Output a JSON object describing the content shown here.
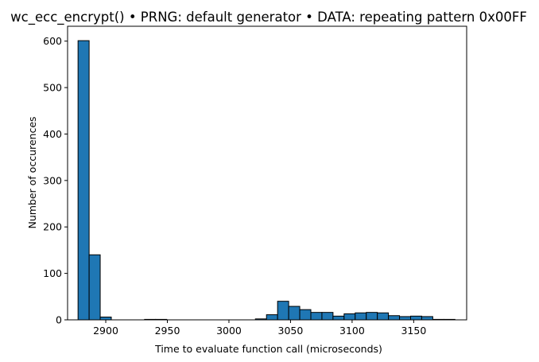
{
  "chart_data": {
    "type": "bar",
    "title": "wc_ecc_encrypt() • PRNG: default generator • DATA: repeating pattern 0x00FF",
    "xlabel": "Time to evaluate function call (microseconds)",
    "ylabel": "Number of occurences",
    "xlim": [
      2869,
      3193
    ],
    "ylim": [
      0,
      632
    ],
    "xticks": [
      2900,
      2950,
      3000,
      3050,
      3100,
      3150
    ],
    "yticks": [
      0,
      100,
      200,
      300,
      400,
      500,
      600
    ],
    "grid": false,
    "bar_color": "#1f77b4",
    "edge_color": "#000000",
    "bin_edges": [
      2877.5,
      2886.5,
      2895.5,
      2904.5,
      2913.5,
      2922.5,
      2931.5,
      2940.5,
      2949.5,
      2958.5,
      2967.5,
      2976.5,
      2985.5,
      2994.5,
      3003.5,
      3012.5,
      3021.5,
      3030.5,
      3039.5,
      3048.5,
      3057.5,
      3066.5,
      3075.5,
      3084.5,
      3093.5,
      3102.5,
      3111.5,
      3120.5,
      3129.5,
      3138.5,
      3147.5,
      3156.5,
      3165.5,
      3174.5,
      3183.5
    ],
    "values": [
      601,
      140,
      6,
      0,
      0,
      0,
      1,
      1,
      0,
      0,
      0,
      0,
      0,
      0,
      0,
      0,
      2,
      11,
      40,
      29,
      22,
      16,
      16,
      8,
      13,
      15,
      16,
      15,
      9,
      7,
      8,
      7,
      1,
      1
    ]
  }
}
